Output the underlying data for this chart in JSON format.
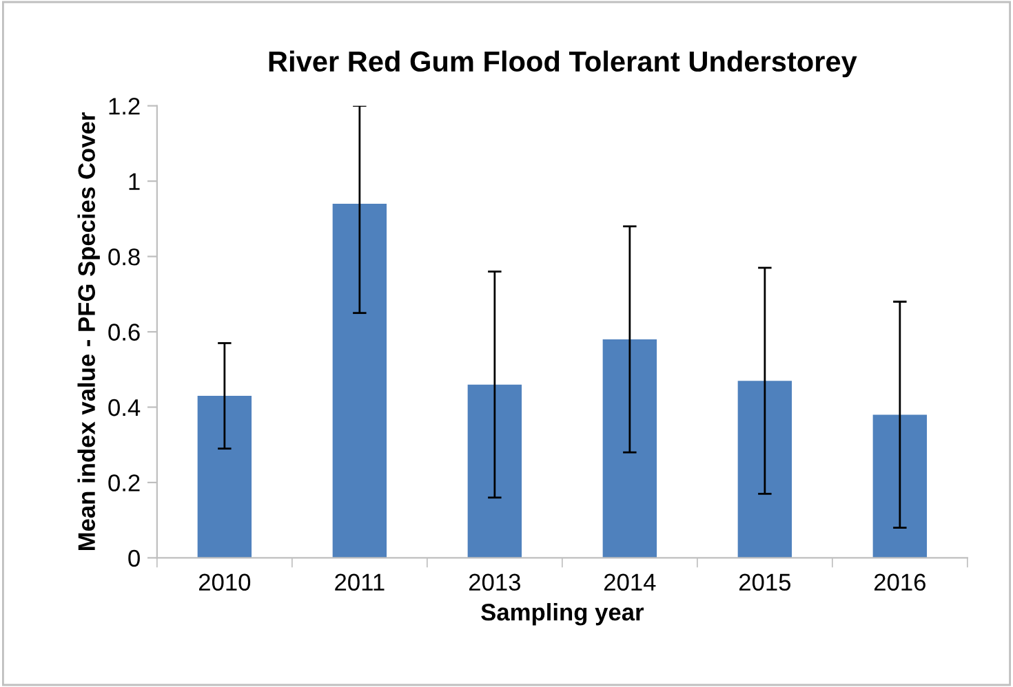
{
  "chart_data": {
    "type": "bar",
    "title": "River Red Gum Flood Tolerant Understorey",
    "xlabel": "Sampling year",
    "ylabel": "Mean index value - PFG Species Cover",
    "categories": [
      "2010",
      "2011",
      "2013",
      "2014",
      "2015",
      "2016"
    ],
    "values": [
      0.43,
      0.94,
      0.46,
      0.58,
      0.47,
      0.38
    ],
    "errors": [
      0.14,
      [
        0.65,
        1.2
      ],
      0.3,
      0.3,
      0.3,
      0.3
    ],
    "color": "#4f81bd",
    "ylim": [
      0,
      1.2
    ],
    "yticks": [
      0,
      0.2,
      0.4,
      0.6,
      0.8,
      1,
      1.2
    ],
    "grid": false,
    "legend": false
  }
}
